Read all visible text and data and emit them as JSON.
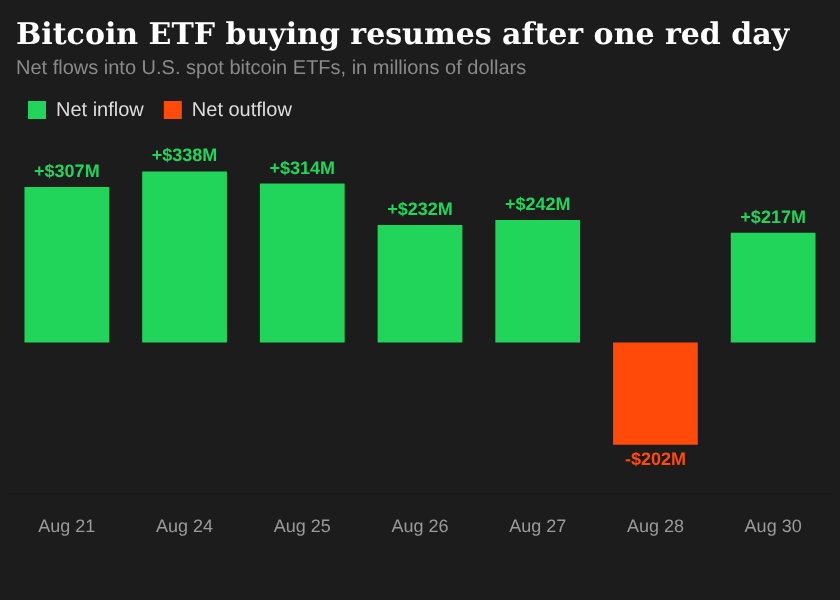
{
  "chart_data": {
    "type": "bar",
    "title": "Bitcoin ETF buying resumes after one red day",
    "subtitle": "Net flows into U.S. spot bitcoin ETFs, in millions of dollars",
    "categories": [
      "Aug 21",
      "Aug 24",
      "Aug 25",
      "Aug 26",
      "Aug 27",
      "Aug 28",
      "Aug 30"
    ],
    "stacked": true,
    "legend": "top left",
    "grid": false,
    "series": [
      {
        "name": "Net inflow",
        "color": "#20d55a",
        "values": [
          307,
          338,
          314,
          232,
          242,
          null,
          217
        ],
        "value_labels": [
          "+$307M",
          "+$338M",
          "+$314M",
          "+$232M",
          "+$242M",
          null,
          "+$217M"
        ]
      },
      {
        "name": "Net outflow",
        "color": "#ff4a0a",
        "values": [
          null,
          null,
          null,
          null,
          null,
          -202,
          null
        ],
        "value_labels": [
          null,
          null,
          null,
          null,
          null,
          "-$202M",
          null
        ]
      }
    ]
  }
}
